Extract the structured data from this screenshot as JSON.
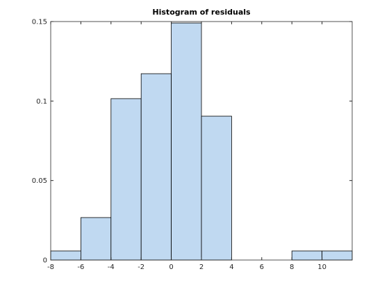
{
  "chart_data": {
    "type": "histogram",
    "title": "Histogram of residuals",
    "bins": [
      -8,
      -6,
      -4,
      -2,
      0,
      2,
      4,
      6,
      8,
      10,
      12
    ],
    "values": [
      0.0057,
      0.0267,
      0.1015,
      0.1172,
      0.1491,
      0.0905,
      0,
      0,
      0.0057,
      0.0057
    ],
    "color": "#c0d9f1",
    "edgecolor": "#000000",
    "xlim": [
      -8,
      12
    ],
    "xticks": [
      -8,
      -6,
      -4,
      -2,
      0,
      2,
      4,
      6,
      8,
      10
    ],
    "ylim": [
      0,
      0.15
    ],
    "yticks": [
      0,
      0.05,
      0.1,
      0.15
    ],
    "grid": false
  }
}
